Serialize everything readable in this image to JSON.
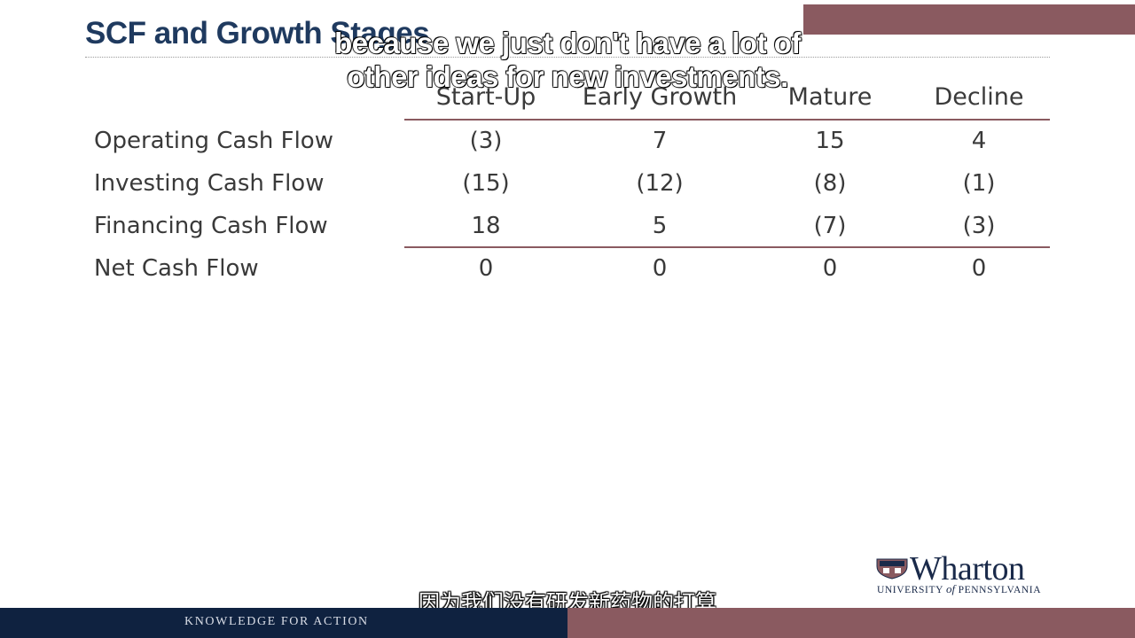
{
  "slide": {
    "title": "SCF and Growth Stages",
    "caption_en_line1": "because we just don't have a lot of",
    "caption_en_line2": "other ideas for new investments.",
    "caption_zh": "因为我们没有研发新药物的打算"
  },
  "table": {
    "columns": [
      "Start-Up",
      "Early Growth",
      "Mature",
      "Decline"
    ],
    "rows": [
      {
        "label": "Operating Cash Flow",
        "values": [
          "(3)",
          "7",
          "15",
          "4"
        ]
      },
      {
        "label": "Investing Cash Flow",
        "values": [
          "(15)",
          "(12)",
          "(8)",
          "(1)"
        ]
      },
      {
        "label": "Financing Cash Flow",
        "values": [
          "18",
          "5",
          "(7)",
          "(3)"
        ]
      },
      {
        "label": "Net Cash Flow",
        "values": [
          "0",
          "0",
          "0",
          "0"
        ]
      }
    ]
  },
  "logo": {
    "word": "Wharton",
    "sub_prefix": "UNIVERSITY ",
    "sub_of": "of",
    "sub_suffix": " PENNSYLVANIA"
  },
  "footer": {
    "text": "KNOWLEDGE FOR ACTION"
  },
  "colors": {
    "navy": "#0f2240",
    "maroon": "#8a5a60",
    "title": "#1f3a5f"
  }
}
